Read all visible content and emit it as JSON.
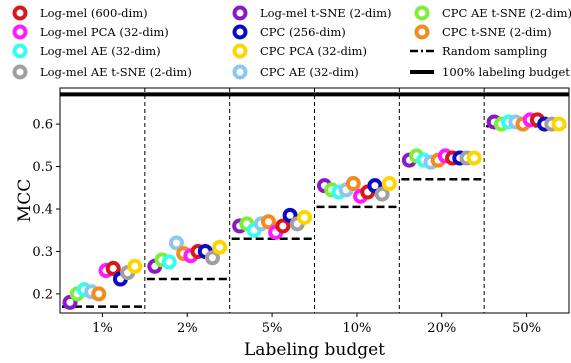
{
  "chart_data": {
    "type": "scatter",
    "xlabel": "Labeling budget",
    "ylabel": "MCC",
    "categories": [
      "1%",
      "2%",
      "5%",
      "10%",
      "20%",
      "50%"
    ],
    "y_ticks": [
      "0.2",
      "0.3",
      "0.4",
      "0.5",
      "0.6"
    ],
    "ylim": [
      0.155,
      0.685
    ],
    "grid": false,
    "legend_position": "top",
    "reference_lines": {
      "random_sampling": {
        "name": "Random sampling",
        "values": [
          0.17,
          0.235,
          0.33,
          0.405,
          0.47,
          0.595
        ]
      },
      "full_budget": {
        "name": "100% labeling budget",
        "value": 0.67
      }
    },
    "series": [
      {
        "name": "Log-mel (600-dim)",
        "color": "#d7191c",
        "values": [
          0.26,
          0.3,
          0.36,
          0.44,
          0.52,
          0.61
        ]
      },
      {
        "name": "Log-mel PCA (32-dim)",
        "color": "#ff1aff",
        "values": [
          0.255,
          0.29,
          0.345,
          0.43,
          0.525,
          0.61
        ]
      },
      {
        "name": "Log-mel AE (32-dim)",
        "color": "#33ffee",
        "values": [
          0.21,
          0.275,
          0.35,
          0.44,
          0.515,
          0.605
        ]
      },
      {
        "name": "Log-mel AE t-SNE (2-dim)",
        "color": "#a0a0a0",
        "values": [
          0.25,
          0.285,
          0.365,
          0.435,
          0.52,
          0.6
        ]
      },
      {
        "name": "Log-mel t-SNE (2-dim)",
        "color": "#8a1ac4",
        "values": [
          0.18,
          0.265,
          0.36,
          0.455,
          0.515,
          0.605
        ]
      },
      {
        "name": "CPC (256-dim)",
        "color": "#0a0ac8",
        "values": [
          0.235,
          0.3,
          0.385,
          0.455,
          0.52,
          0.6
        ]
      },
      {
        "name": "CPC PCA (32-dim)",
        "color": "#ffd500",
        "values": [
          0.265,
          0.31,
          0.38,
          0.46,
          0.52,
          0.6
        ]
      },
      {
        "name": "CPC AE (32-dim)",
        "color": "#8cc8ee",
        "values": [
          0.205,
          0.32,
          0.365,
          0.445,
          0.51,
          0.605
        ]
      },
      {
        "name": "CPC AE t-SNE (2-dim)",
        "color": "#7dee3a",
        "values": [
          0.2,
          0.28,
          0.365,
          0.445,
          0.525,
          0.6
        ]
      },
      {
        "name": "CPC t-SNE (2-dim)",
        "color": "#f58a1e",
        "values": [
          0.2,
          0.295,
          0.37,
          0.46,
          0.515,
          0.6
        ]
      }
    ],
    "legend": {
      "random_label": "Random sampling",
      "full_label": "100% labeling budget"
    }
  }
}
